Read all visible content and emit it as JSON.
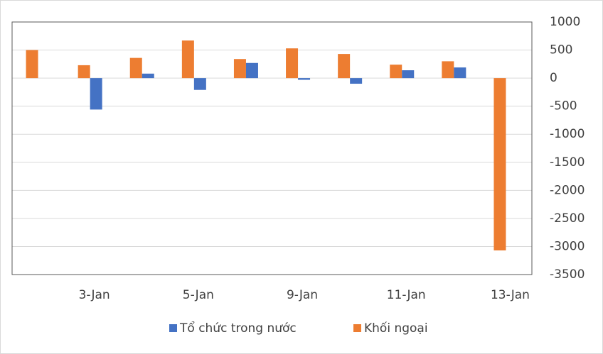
{
  "chart_data": {
    "type": "bar",
    "categories": [
      null,
      "3-Jan",
      null,
      "5-Jan",
      null,
      "9-Jan",
      null,
      "11-Jan",
      null,
      "13-Jan"
    ],
    "series": [
      {
        "name": "Tổ chức trong nước",
        "color": "#4472c4",
        "values": [
          0,
          -560,
          80,
          -210,
          270,
          -30,
          -100,
          140,
          190,
          0
        ]
      },
      {
        "name": "Khối ngoại",
        "color": "#ed7d31",
        "values": [
          500,
          230,
          360,
          670,
          340,
          530,
          430,
          240,
          300,
          -3070
        ]
      }
    ],
    "ylim": [
      -3500,
      1000
    ],
    "yticks": [
      1000,
      500,
      0,
      -500,
      -1000,
      -1500,
      -2000,
      -2500,
      -3000,
      -3500
    ],
    "grid": true,
    "legend": "bottom"
  }
}
